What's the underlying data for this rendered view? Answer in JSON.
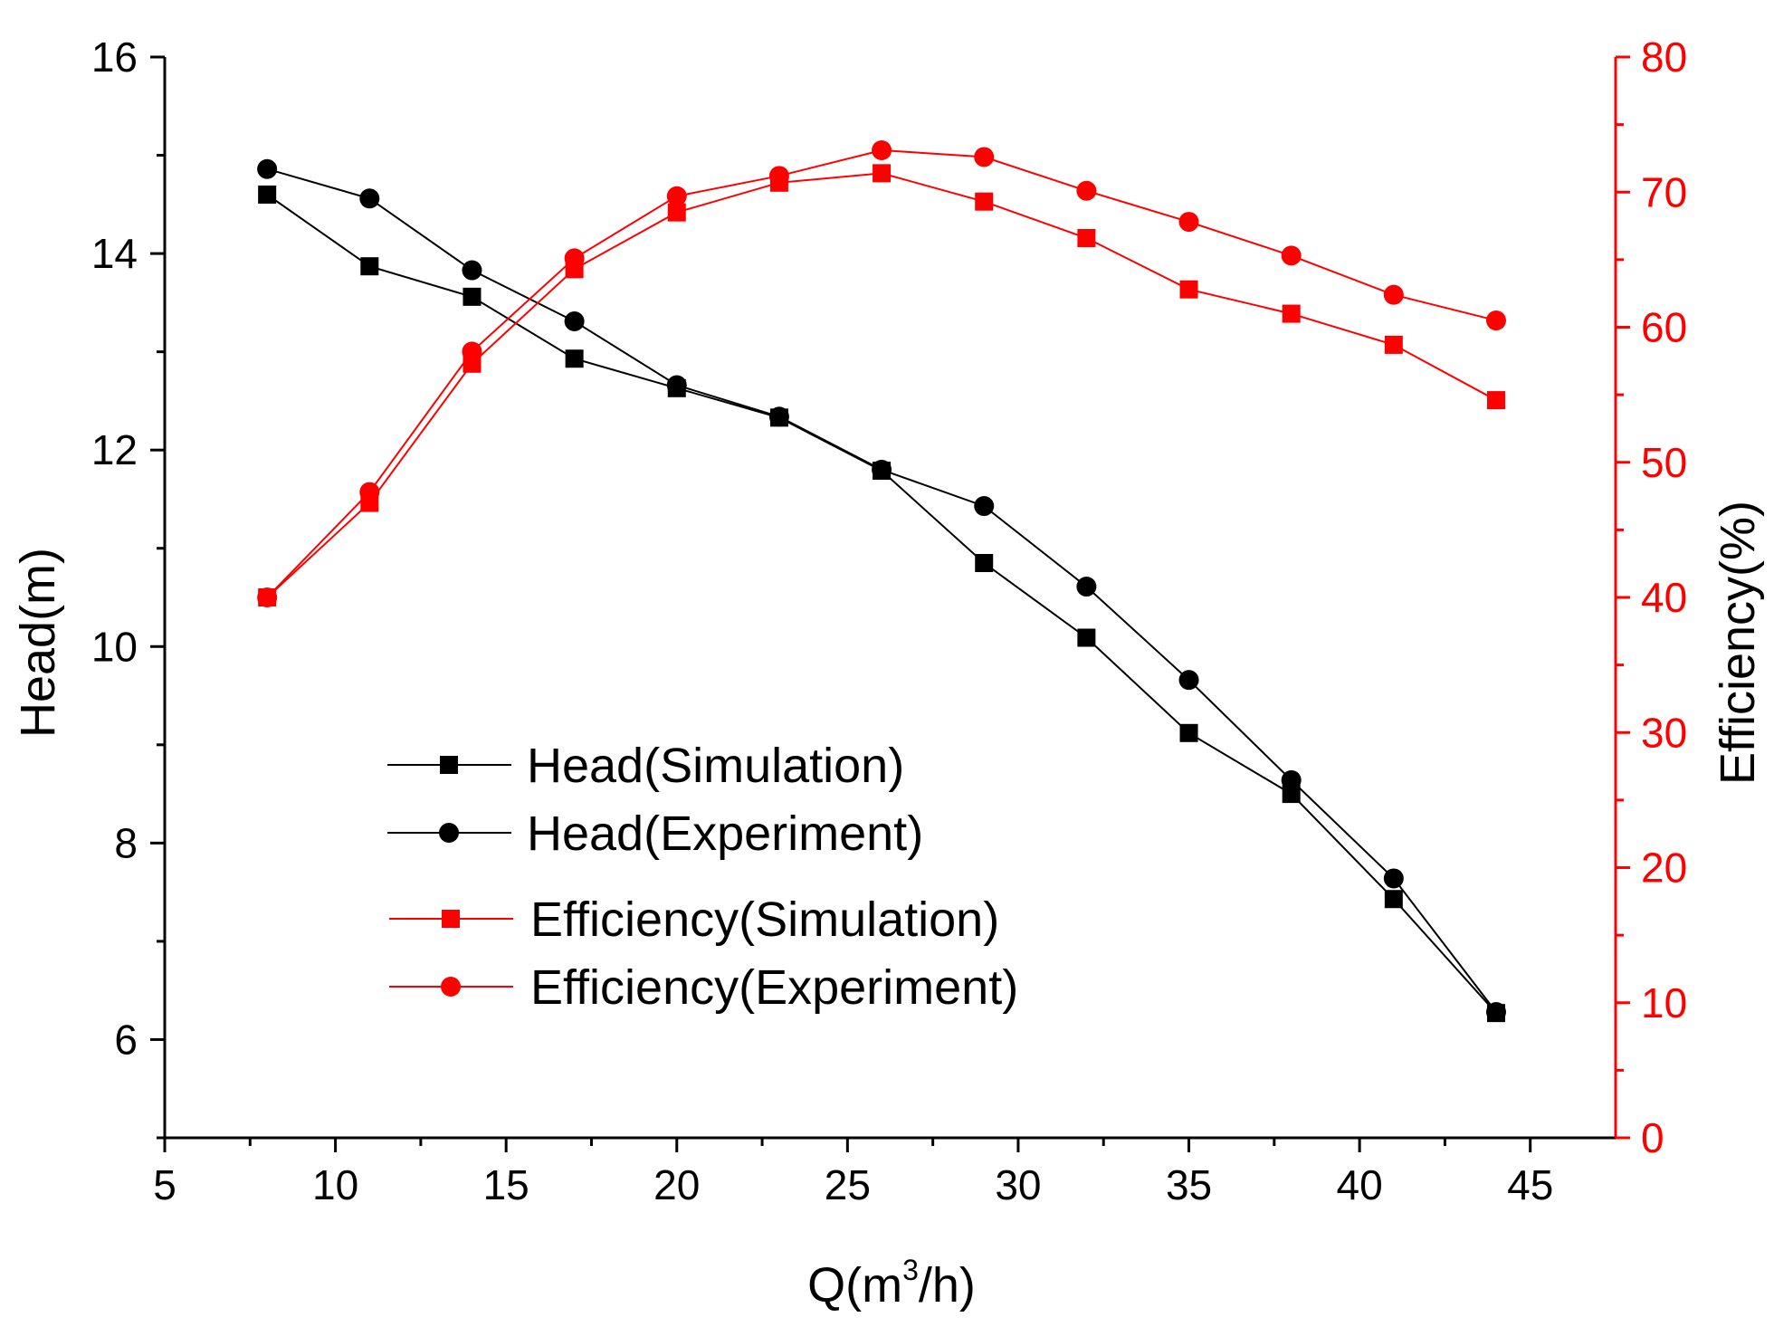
{
  "chart_data": {
    "type": "line",
    "xlabel_prefix": "Q(m",
    "xlabel_sup": "3",
    "xlabel_suffix": "/h)",
    "ylabel": "Head(m)",
    "y2label": "Efficiency(%)",
    "xlim": [
      5,
      47.5
    ],
    "ylim": [
      5,
      16
    ],
    "y2lim": [
      0,
      80
    ],
    "x_ticks": [
      5,
      10,
      15,
      20,
      25,
      30,
      35,
      40,
      45
    ],
    "x_tick_labels": [
      "5",
      "10",
      "15",
      "20",
      "25",
      "30",
      "35",
      "40",
      "45"
    ],
    "y_ticks": [
      6,
      8,
      10,
      12,
      14,
      16
    ],
    "y_tick_labels": [
      "6",
      "8",
      "10",
      "12",
      "14",
      "16"
    ],
    "y2_ticks": [
      0,
      10,
      20,
      30,
      40,
      50,
      60,
      70,
      80
    ],
    "y2_tick_labels": [
      "0",
      "10",
      "20",
      "30",
      "40",
      "50",
      "60",
      "70",
      "80"
    ],
    "x": [
      8,
      11,
      14,
      17,
      20,
      23,
      26,
      29,
      32,
      35,
      38,
      41,
      44
    ],
    "series": [
      {
        "name": "Head(Simulation)",
        "axis": "left",
        "marker": "square",
        "color": "#000000",
        "values": [
          14.6,
          13.87,
          13.56,
          12.93,
          12.63,
          12.33,
          11.79,
          10.85,
          10.09,
          9.12,
          8.5,
          7.43,
          6.27
        ]
      },
      {
        "name": "Head(Experiment)",
        "axis": "left",
        "marker": "circle",
        "color": "#000000",
        "values": [
          14.86,
          14.56,
          13.83,
          13.31,
          12.66,
          12.34,
          11.8,
          11.43,
          10.61,
          9.66,
          8.64,
          7.64,
          6.28
        ]
      },
      {
        "name": "Efficiency(Simulation)",
        "axis": "right",
        "marker": "square",
        "color": "#ff0000",
        "values": [
          40.0,
          47.0,
          57.3,
          64.3,
          68.5,
          70.7,
          71.4,
          69.3,
          66.6,
          62.8,
          61.0,
          58.7,
          54.6
        ]
      },
      {
        "name": "Efficiency(Experiment)",
        "axis": "right",
        "marker": "circle",
        "color": "#ff0000",
        "values": [
          40.0,
          47.8,
          58.2,
          65.1,
          69.7,
          71.2,
          73.1,
          72.6,
          70.1,
          67.8,
          65.3,
          62.4,
          60.5
        ]
      }
    ],
    "legend_position": "lower-left-center",
    "axis_colors": {
      "left": "#000000",
      "right": "#ff0000"
    }
  }
}
